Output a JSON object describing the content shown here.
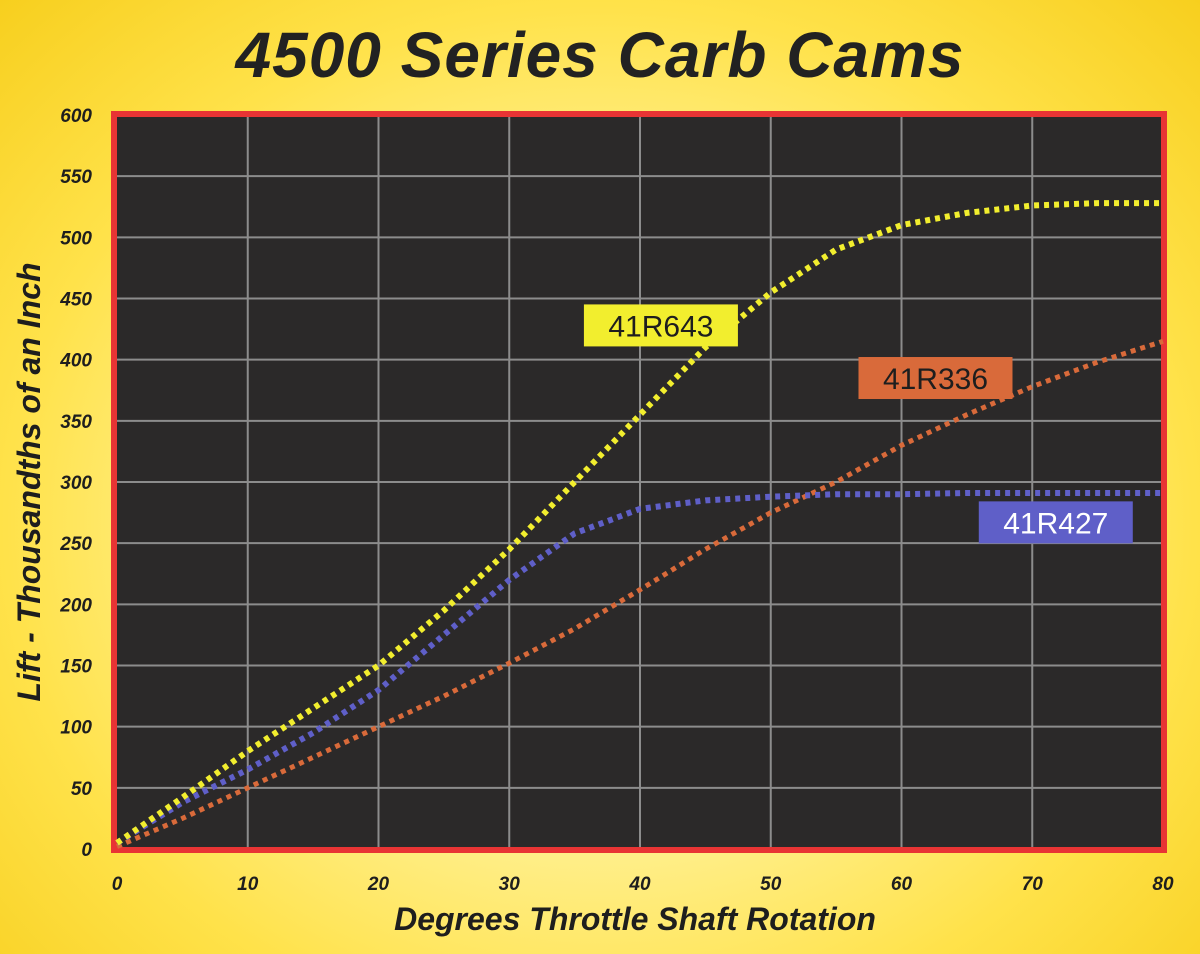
{
  "chart_data": {
    "type": "line",
    "title": "4500 Series Carb Cams",
    "xlabel": "Degrees Throttle Shaft Rotation",
    "ylabel": "Lift - Thousandths of an Inch",
    "xlim": [
      0,
      80
    ],
    "ylim": [
      0,
      600
    ],
    "xticks": [
      0,
      10,
      20,
      30,
      40,
      50,
      60,
      70,
      80
    ],
    "yticks": [
      0,
      50,
      100,
      150,
      200,
      250,
      300,
      350,
      400,
      450,
      500,
      550,
      600
    ],
    "grid": true,
    "series": [
      {
        "name": "41R643",
        "color": "#f2ee2e",
        "x": [
          0,
          5,
          10,
          15,
          20,
          25,
          30,
          35,
          40,
          45,
          50,
          55,
          60,
          65,
          70,
          75,
          80
        ],
        "y": [
          5,
          42,
          80,
          115,
          150,
          195,
          245,
          300,
          355,
          410,
          455,
          490,
          510,
          520,
          526,
          528,
          528
        ]
      },
      {
        "name": "41R336",
        "color": "#d96a3a",
        "x": [
          0,
          5,
          10,
          15,
          20,
          25,
          30,
          35,
          40,
          45,
          50,
          55,
          60,
          65,
          70,
          75,
          80
        ],
        "y": [
          2,
          25,
          50,
          75,
          100,
          125,
          152,
          180,
          212,
          245,
          275,
          300,
          330,
          355,
          378,
          398,
          415
        ]
      },
      {
        "name": "41R427",
        "color": "#5f5fc8",
        "x": [
          0,
          5,
          10,
          15,
          20,
          25,
          30,
          35,
          40,
          45,
          50,
          55,
          60,
          65,
          70,
          75,
          80
        ],
        "y": [
          5,
          38,
          65,
          95,
          130,
          175,
          220,
          258,
          278,
          285,
          288,
          290,
          290,
          291,
          291,
          291,
          291
        ]
      }
    ]
  }
}
